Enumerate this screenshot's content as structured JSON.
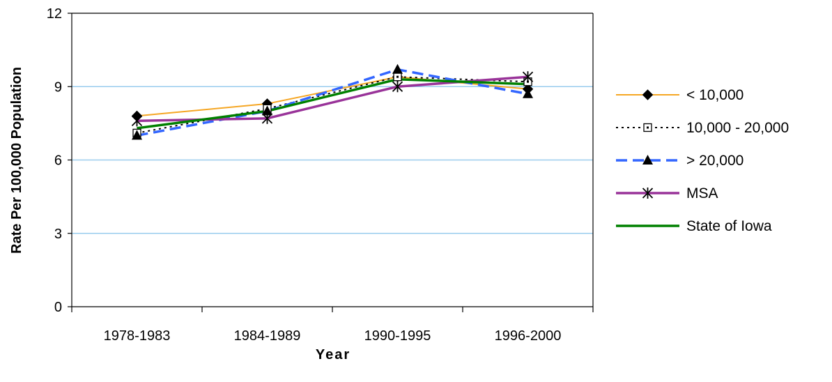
{
  "chart_data": {
    "type": "line",
    "categories": [
      "1978-1983",
      "1984-1989",
      "1990-1995",
      "1996-2000"
    ],
    "series": [
      {
        "name": "< 10,000",
        "values": [
          7.8,
          8.3,
          9.4,
          8.9
        ],
        "color": "#F5A623",
        "marker": "diamond",
        "dash": "solid"
      },
      {
        "name": "10,000 - 20,000",
        "values": [
          7.1,
          8.1,
          9.4,
          9.2
        ],
        "color": "#000000",
        "marker": "open-square",
        "dash": "dotted"
      },
      {
        "name": "> 20,000",
        "values": [
          7.0,
          8.0,
          9.7,
          8.7
        ],
        "color": "#3366FF",
        "marker": "triangle",
        "dash": "dashed"
      },
      {
        "name": "MSA",
        "values": [
          7.6,
          7.7,
          9.0,
          9.4
        ],
        "color": "#993399",
        "marker": "asterisk",
        "dash": "solid"
      },
      {
        "name": "State of Iowa",
        "values": [
          7.3,
          8.0,
          9.3,
          9.1
        ],
        "color": "#008000",
        "marker": "none",
        "dash": "solid"
      }
    ],
    "xlabel": "Year",
    "ylabel": "Rate Per 100,000 Population",
    "ylim": [
      0,
      12
    ],
    "yticks": [
      "0",
      "3",
      "6",
      "9",
      "12"
    ],
    "grid": true,
    "grid_color": "#99CCEE",
    "legend_position": "right"
  }
}
